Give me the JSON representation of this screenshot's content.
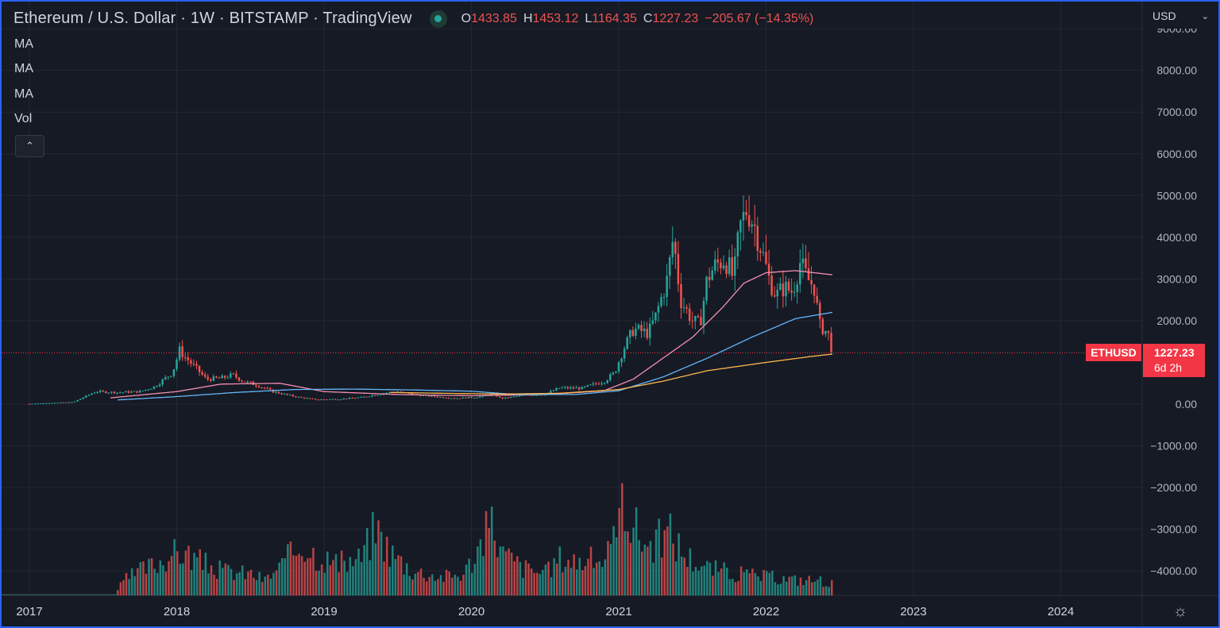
{
  "header": {
    "title": "Ethereum / U.S. Dollar · 1W · BITSTAMP · TradingView",
    "ohlc": {
      "o_label": "O",
      "o": "1433.85",
      "h_label": "H",
      "h": "1453.12",
      "l_label": "L",
      "l": "1164.35",
      "c_label": "C",
      "c": "1227.23",
      "change": "−205.67 (−14.35%)"
    }
  },
  "indicators": [
    "MA",
    "MA",
    "MA",
    "Vol"
  ],
  "currency": "USD",
  "symbol_tag": "ETHUSD",
  "price_tag": {
    "price": "1227.23",
    "countdown": "6d 2h"
  },
  "colors": {
    "up": "#26a69a",
    "down": "#ef5350",
    "ma_short": "#f48fb1",
    "ma_mid": "#64b5f6",
    "ma_long": "#ffb74d",
    "background": "#161a25",
    "grid": "#232733",
    "frame": "#2962ff"
  },
  "chart_data": {
    "type": "candlestick",
    "symbol": "ETHUSD",
    "interval": "1W",
    "exchange": "BITSTAMP",
    "last_price": 1227.23,
    "x_ticks": [
      "2017",
      "2018",
      "2019",
      "2020",
      "2021",
      "2022",
      "2023",
      "2024"
    ],
    "y_ticks": [
      "9000.00",
      "8000.00",
      "7000.00",
      "6000.00",
      "5000.00",
      "4000.00",
      "3000.00",
      "2000.00",
      "0.00",
      "−1000.00",
      "−2000.00",
      "−3000.00",
      "−4000.00"
    ],
    "ylim": [
      -4700,
      9100
    ],
    "xlim": [
      2016.98,
      2024.6
    ],
    "close_anchors": [
      [
        2017.0,
        8
      ],
      [
        2017.3,
        50
      ],
      [
        2017.45,
        300
      ],
      [
        2017.6,
        280
      ],
      [
        2017.75,
        300
      ],
      [
        2017.85,
        420
      ],
      [
        2017.97,
        750
      ],
      [
        2018.02,
        1300
      ],
      [
        2018.05,
        1150
      ],
      [
        2018.12,
        900
      ],
      [
        2018.2,
        600
      ],
      [
        2018.3,
        620
      ],
      [
        2018.38,
        700
      ],
      [
        2018.45,
        550
      ],
      [
        2018.55,
        450
      ],
      [
        2018.65,
        300
      ],
      [
        2018.75,
        220
      ],
      [
        2018.85,
        150
      ],
      [
        2018.95,
        110
      ],
      [
        2019.1,
        120
      ],
      [
        2019.25,
        160
      ],
      [
        2019.4,
        260
      ],
      [
        2019.5,
        300
      ],
      [
        2019.6,
        230
      ],
      [
        2019.75,
        180
      ],
      [
        2019.9,
        140
      ],
      [
        2020.05,
        170
      ],
      [
        2020.15,
        250
      ],
      [
        2020.2,
        130
      ],
      [
        2020.35,
        210
      ],
      [
        2020.5,
        240
      ],
      [
        2020.6,
        390
      ],
      [
        2020.75,
        380
      ],
      [
        2020.9,
        550
      ],
      [
        2020.97,
        740
      ],
      [
        2021.03,
        1300
      ],
      [
        2021.1,
        1800
      ],
      [
        2021.2,
        1700
      ],
      [
        2021.25,
        2100
      ],
      [
        2021.33,
        3000
      ],
      [
        2021.37,
        4000
      ],
      [
        2021.42,
        2500
      ],
      [
        2021.5,
        2000
      ],
      [
        2021.55,
        1900
      ],
      [
        2021.6,
        3000
      ],
      [
        2021.65,
        3300
      ],
      [
        2021.72,
        3500
      ],
      [
        2021.78,
        3000
      ],
      [
        2021.82,
        4200
      ],
      [
        2021.87,
        4700
      ],
      [
        2021.92,
        4300
      ],
      [
        2021.97,
        3700
      ],
      [
        2022.02,
        3000
      ],
      [
        2022.07,
        2600
      ],
      [
        2022.12,
        2800
      ],
      [
        2022.18,
        2700
      ],
      [
        2022.23,
        3400
      ],
      [
        2022.28,
        3000
      ],
      [
        2022.33,
        2800
      ],
      [
        2022.36,
        1900
      ],
      [
        2022.39,
        1800
      ],
      [
        2022.42,
        1700
      ],
      [
        2022.45,
        1227
      ]
    ],
    "ma_series": [
      {
        "anchors": [
          [
            2017.55,
            150
          ],
          [
            2018.0,
            300
          ],
          [
            2018.3,
            480
          ],
          [
            2018.7,
            500
          ],
          [
            2019.0,
            300
          ],
          [
            2019.5,
            230
          ],
          [
            2020.0,
            200
          ],
          [
            2020.5,
            230
          ],
          [
            2020.9,
            320
          ],
          [
            2021.1,
            600
          ],
          [
            2021.3,
            1100
          ],
          [
            2021.5,
            1600
          ],
          [
            2021.7,
            2300
          ],
          [
            2021.85,
            2900
          ],
          [
            2022.0,
            3150
          ],
          [
            2022.2,
            3200
          ],
          [
            2022.45,
            3100
          ]
        ]
      },
      {
        "anchors": [
          [
            2017.6,
            100
          ],
          [
            2018.0,
            180
          ],
          [
            2018.4,
            280
          ],
          [
            2018.8,
            350
          ],
          [
            2019.2,
            360
          ],
          [
            2019.6,
            340
          ],
          [
            2020.0,
            310
          ],
          [
            2020.3,
            230
          ],
          [
            2020.7,
            230
          ],
          [
            2021.0,
            320
          ],
          [
            2021.3,
            650
          ],
          [
            2021.6,
            1100
          ],
          [
            2021.9,
            1600
          ],
          [
            2022.2,
            2050
          ],
          [
            2022.45,
            2200
          ]
        ]
      },
      {
        "anchors": [
          [
            2019.45,
            280
          ],
          [
            2019.8,
            260
          ],
          [
            2020.2,
            240
          ],
          [
            2020.6,
            260
          ],
          [
            2021.0,
            350
          ],
          [
            2021.3,
            550
          ],
          [
            2021.6,
            800
          ],
          [
            2022.0,
            1000
          ],
          [
            2022.3,
            1140
          ],
          [
            2022.45,
            1200
          ]
        ]
      }
    ],
    "volume_anchors": [
      [
        2017.6,
        0.02
      ],
      [
        2017.65,
        0.05
      ],
      [
        2017.75,
        0.08
      ],
      [
        2017.85,
        0.1
      ],
      [
        2017.95,
        0.13
      ],
      [
        2018.05,
        0.14
      ],
      [
        2018.15,
        0.11
      ],
      [
        2018.3,
        0.08
      ],
      [
        2018.5,
        0.07
      ],
      [
        2018.6,
        0.05
      ],
      [
        2018.7,
        0.09
      ],
      [
        2018.85,
        0.17
      ],
      [
        2018.95,
        0.13
      ],
      [
        2019.1,
        0.1
      ],
      [
        2019.25,
        0.12
      ],
      [
        2019.35,
        0.22
      ],
      [
        2019.45,
        0.14
      ],
      [
        2019.6,
        0.08
      ],
      [
        2019.8,
        0.06
      ],
      [
        2019.95,
        0.07
      ],
      [
        2020.15,
        0.24
      ],
      [
        2020.2,
        0.14
      ],
      [
        2020.35,
        0.09
      ],
      [
        2020.5,
        0.07
      ],
      [
        2020.6,
        0.12
      ],
      [
        2020.75,
        0.11
      ],
      [
        2020.9,
        0.12
      ],
      [
        2021.0,
        0.18
      ],
      [
        2021.02,
        0.38
      ],
      [
        2021.08,
        0.24
      ],
      [
        2021.2,
        0.16
      ],
      [
        2021.35,
        0.2
      ],
      [
        2021.45,
        0.13
      ],
      [
        2021.6,
        0.09
      ],
      [
        2021.8,
        0.07
      ],
      [
        2022.0,
        0.06
      ],
      [
        2022.2,
        0.05
      ],
      [
        2022.35,
        0.05
      ],
      [
        2022.45,
        0.04
      ]
    ]
  }
}
